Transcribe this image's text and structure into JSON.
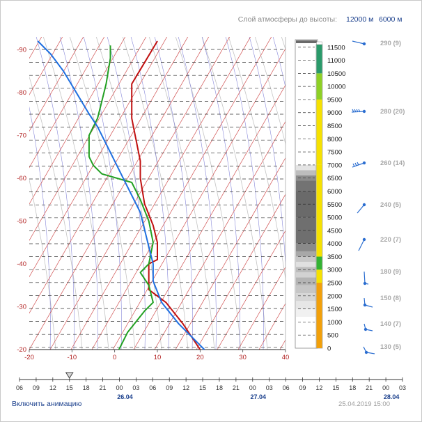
{
  "header": {
    "layer_label": "Слой атмосферы до высоты:",
    "layer_option_1": "12000 м",
    "layer_option_2": "6000 м"
  },
  "footer": {
    "animation_link": "Включить анимацию",
    "timestamp": "25.04.2019 15:00"
  },
  "colors": {
    "dew_point": "#22a022",
    "temperature": "#c01010",
    "parcel": "#1f6fe0",
    "dry_adiabat": "#c4c4c4",
    "isotherm": "#d05050",
    "moist_adiabat": "#6a6ad0",
    "grid": "#333333",
    "axis_red": "#b22222",
    "link_blue": "#1a3f8c"
  },
  "chart_data": {
    "type": "line",
    "title": "",
    "x_axis": {
      "ticks": [
        "-20",
        "-10",
        "0",
        "10",
        "20",
        "30",
        "40"
      ],
      "range": [
        -20,
        40
      ]
    },
    "y_axis": {
      "ticks": [
        "-20",
        "-30",
        "-40",
        "-50",
        "-60",
        "-70",
        "-80",
        "-90"
      ]
    },
    "series": [
      {
        "key": "temperature",
        "points": [
          [
            20,
            -20
          ],
          [
            16,
            -26
          ],
          [
            12,
            -31
          ],
          [
            8,
            -34
          ],
          [
            8,
            -40
          ],
          [
            10,
            -41
          ],
          [
            10,
            -45
          ],
          [
            9,
            -49
          ],
          [
            7,
            -54
          ],
          [
            6,
            -60
          ],
          [
            6,
            -64
          ],
          [
            5,
            -69
          ],
          [
            4,
            -74
          ],
          [
            4,
            -80
          ],
          [
            4,
            -82
          ],
          [
            7,
            -87
          ],
          [
            10,
            -92
          ]
        ]
      },
      {
        "key": "dew_point",
        "points": [
          [
            1,
            -20
          ],
          [
            3,
            -24
          ],
          [
            7,
            -29
          ],
          [
            9,
            -31
          ],
          [
            8,
            -35
          ],
          [
            6,
            -38
          ],
          [
            8,
            -40
          ],
          [
            9,
            -45
          ],
          [
            8,
            -50
          ],
          [
            6,
            -55
          ],
          [
            4,
            -59
          ],
          [
            -3,
            -61
          ],
          [
            -5,
            -63
          ],
          [
            -6,
            -65
          ],
          [
            -6,
            -70
          ],
          [
            -4,
            -74
          ],
          [
            -3,
            -78
          ],
          [
            -2,
            -82
          ],
          [
            -1,
            -88
          ],
          [
            -1,
            -91
          ]
        ]
      },
      {
        "key": "parcel",
        "points": [
          [
            21,
            -20
          ],
          [
            15,
            -26
          ],
          [
            11,
            -31
          ],
          [
            9,
            -36
          ],
          [
            9,
            -40
          ],
          [
            8,
            -44
          ],
          [
            7,
            -48
          ],
          [
            6,
            -52
          ],
          [
            4,
            -56
          ],
          [
            2,
            -60
          ],
          [
            0,
            -64
          ],
          [
            -2,
            -68
          ],
          [
            -4,
            -72
          ],
          [
            -6,
            -75
          ],
          [
            -9,
            -80
          ],
          [
            -12,
            -85
          ],
          [
            -15,
            -89
          ],
          [
            -18,
            -92
          ]
        ]
      }
    ],
    "altitude_scale": {
      "labels": [
        "0",
        "500",
        "1000",
        "1500",
        "2000",
        "2500",
        "3000",
        "3500",
        "4000",
        "4500",
        "5000",
        "5500",
        "6000",
        "6500",
        "7000",
        "7500",
        "8000",
        "8500",
        "9000",
        "9500",
        "10000",
        "10500",
        "11000",
        "11500"
      ],
      "cloud_segments": [
        {
          "from": 0,
          "to": 2500,
          "color": "#f2a00a"
        },
        {
          "from": 2500,
          "to": 3000,
          "color": "#f6e100"
        },
        {
          "from": 3000,
          "to": 3500,
          "color": "#33b233"
        },
        {
          "from": 3500,
          "to": 7000,
          "color": "#f6e100"
        },
        {
          "from": 7000,
          "to": 9500,
          "color": "#f6e100"
        },
        {
          "from": 9500,
          "to": 10500,
          "color": "#8ed025"
        },
        {
          "from": 10500,
          "to": 11600,
          "color": "#2a9a6a"
        }
      ]
    },
    "winds": [
      {
        "label": "290 (9)"
      },
      {
        "label": "280 (20)"
      },
      {
        "label": "260 (14)"
      },
      {
        "label": "240 (5)"
      },
      {
        "label": "220 (7)"
      },
      {
        "label": "180 (9)"
      },
      {
        "label": "150 (8)"
      },
      {
        "label": "140 (7)"
      },
      {
        "label": "130 (5)"
      }
    ],
    "timeline": {
      "hours": [
        "06",
        "09",
        "12",
        "15",
        "18",
        "21",
        "00",
        "03",
        "06",
        "09",
        "12",
        "15",
        "18",
        "21",
        "00",
        "03",
        "06",
        "09",
        "12",
        "15",
        "18",
        "21",
        "00",
        "03"
      ],
      "dates": [
        {
          "label": "26.04",
          "hour_index": 6
        },
        {
          "label": "27.04",
          "hour_index": 14
        },
        {
          "label": "28.04",
          "hour_index": 22
        }
      ],
      "current_index": 3
    }
  }
}
